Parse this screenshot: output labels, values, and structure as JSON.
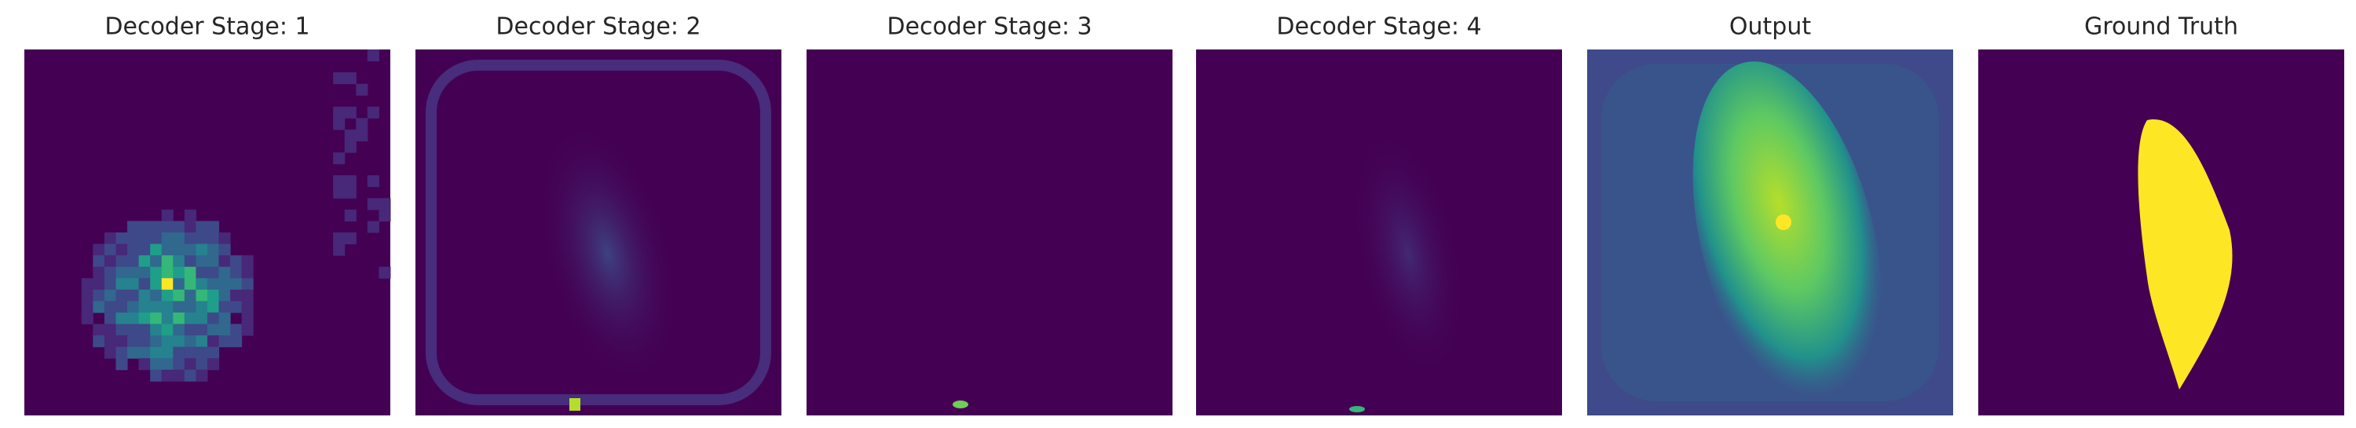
{
  "panels": [
    {
      "title": "Decoder Stage: 1"
    },
    {
      "title": "Decoder Stage: 2"
    },
    {
      "title": "Decoder Stage: 3"
    },
    {
      "title": "Decoder Stage: 4"
    },
    {
      "title": "Output"
    },
    {
      "title": "Ground Truth"
    }
  ]
}
